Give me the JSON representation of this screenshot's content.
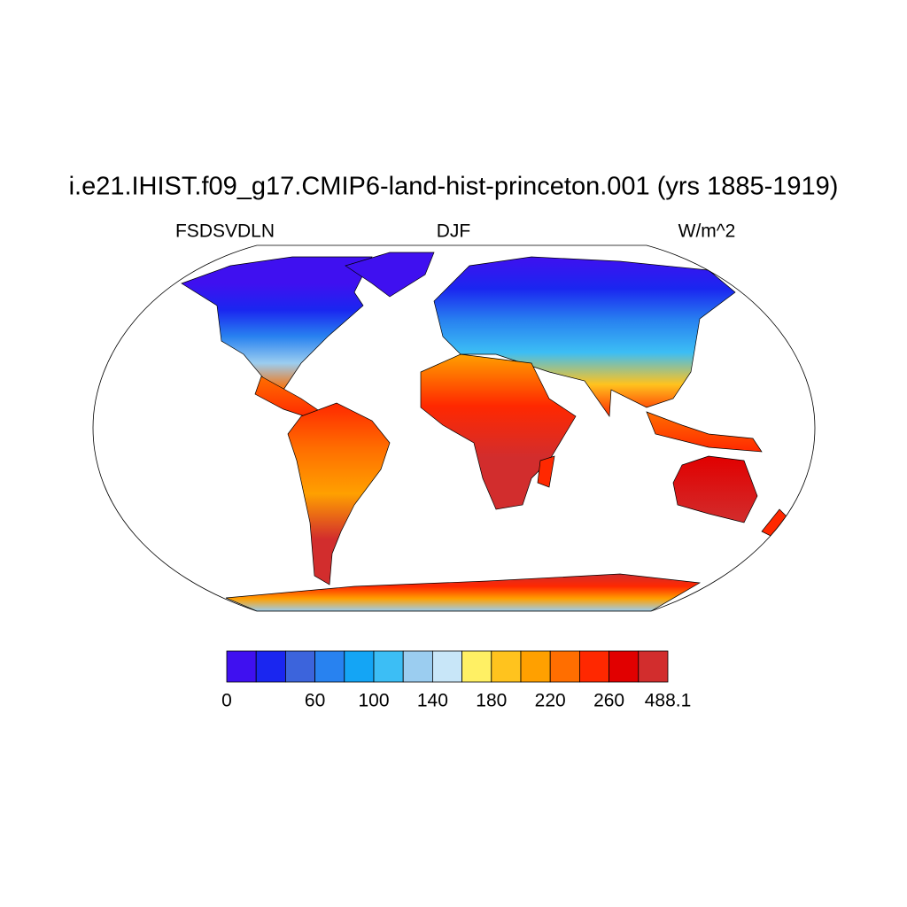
{
  "title": "i.e21.IHIST.f09_g17.CMIP6-land-hist-princeton.001 (yrs 1885-1919)",
  "left_label": "FSDSVDLN",
  "center_label": "DJF",
  "right_label": "W/m^2",
  "colorbar": {
    "colors": [
      "#3f10f0",
      "#1a26f0",
      "#3c64dc",
      "#2882f0",
      "#14a5f5",
      "#3cbef5",
      "#9bcdf0",
      "#c8e6f8",
      "#fff064",
      "#ffc31e",
      "#ffa000",
      "#ff6e00",
      "#ff2800",
      "#e10000",
      "#d22d2d"
    ],
    "labels": [
      0,
      60,
      100,
      140,
      180,
      220,
      260,
      488.1
    ]
  }
}
